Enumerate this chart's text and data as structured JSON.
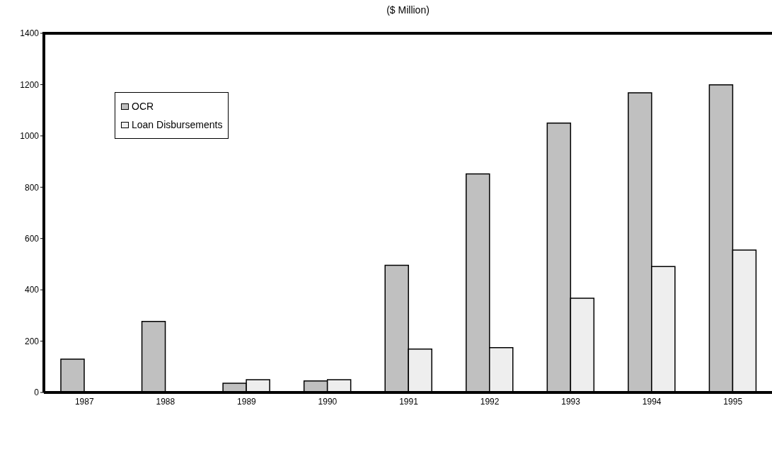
{
  "chart_data": {
    "type": "bar",
    "title": "($ Million)",
    "categories": [
      "1987",
      "1988",
      "1989",
      "1990",
      "1991",
      "1992",
      "1993",
      "1994",
      "1995"
    ],
    "series": [
      {
        "name": "OCR",
        "color": "#c0c0c0",
        "values": [
          130,
          277,
          36,
          45,
          496,
          852,
          1050,
          1168,
          1199
        ]
      },
      {
        "name": "Loan Disbursements",
        "color": "#eeeeee",
        "values": [
          null,
          null,
          50,
          50,
          169,
          175,
          367,
          491,
          555
        ]
      }
    ],
    "ylim": [
      0,
      1400
    ],
    "yticks": [
      0,
      200,
      400,
      600,
      800,
      1000,
      1200,
      1400
    ],
    "grid": false,
    "legend": "top left"
  }
}
